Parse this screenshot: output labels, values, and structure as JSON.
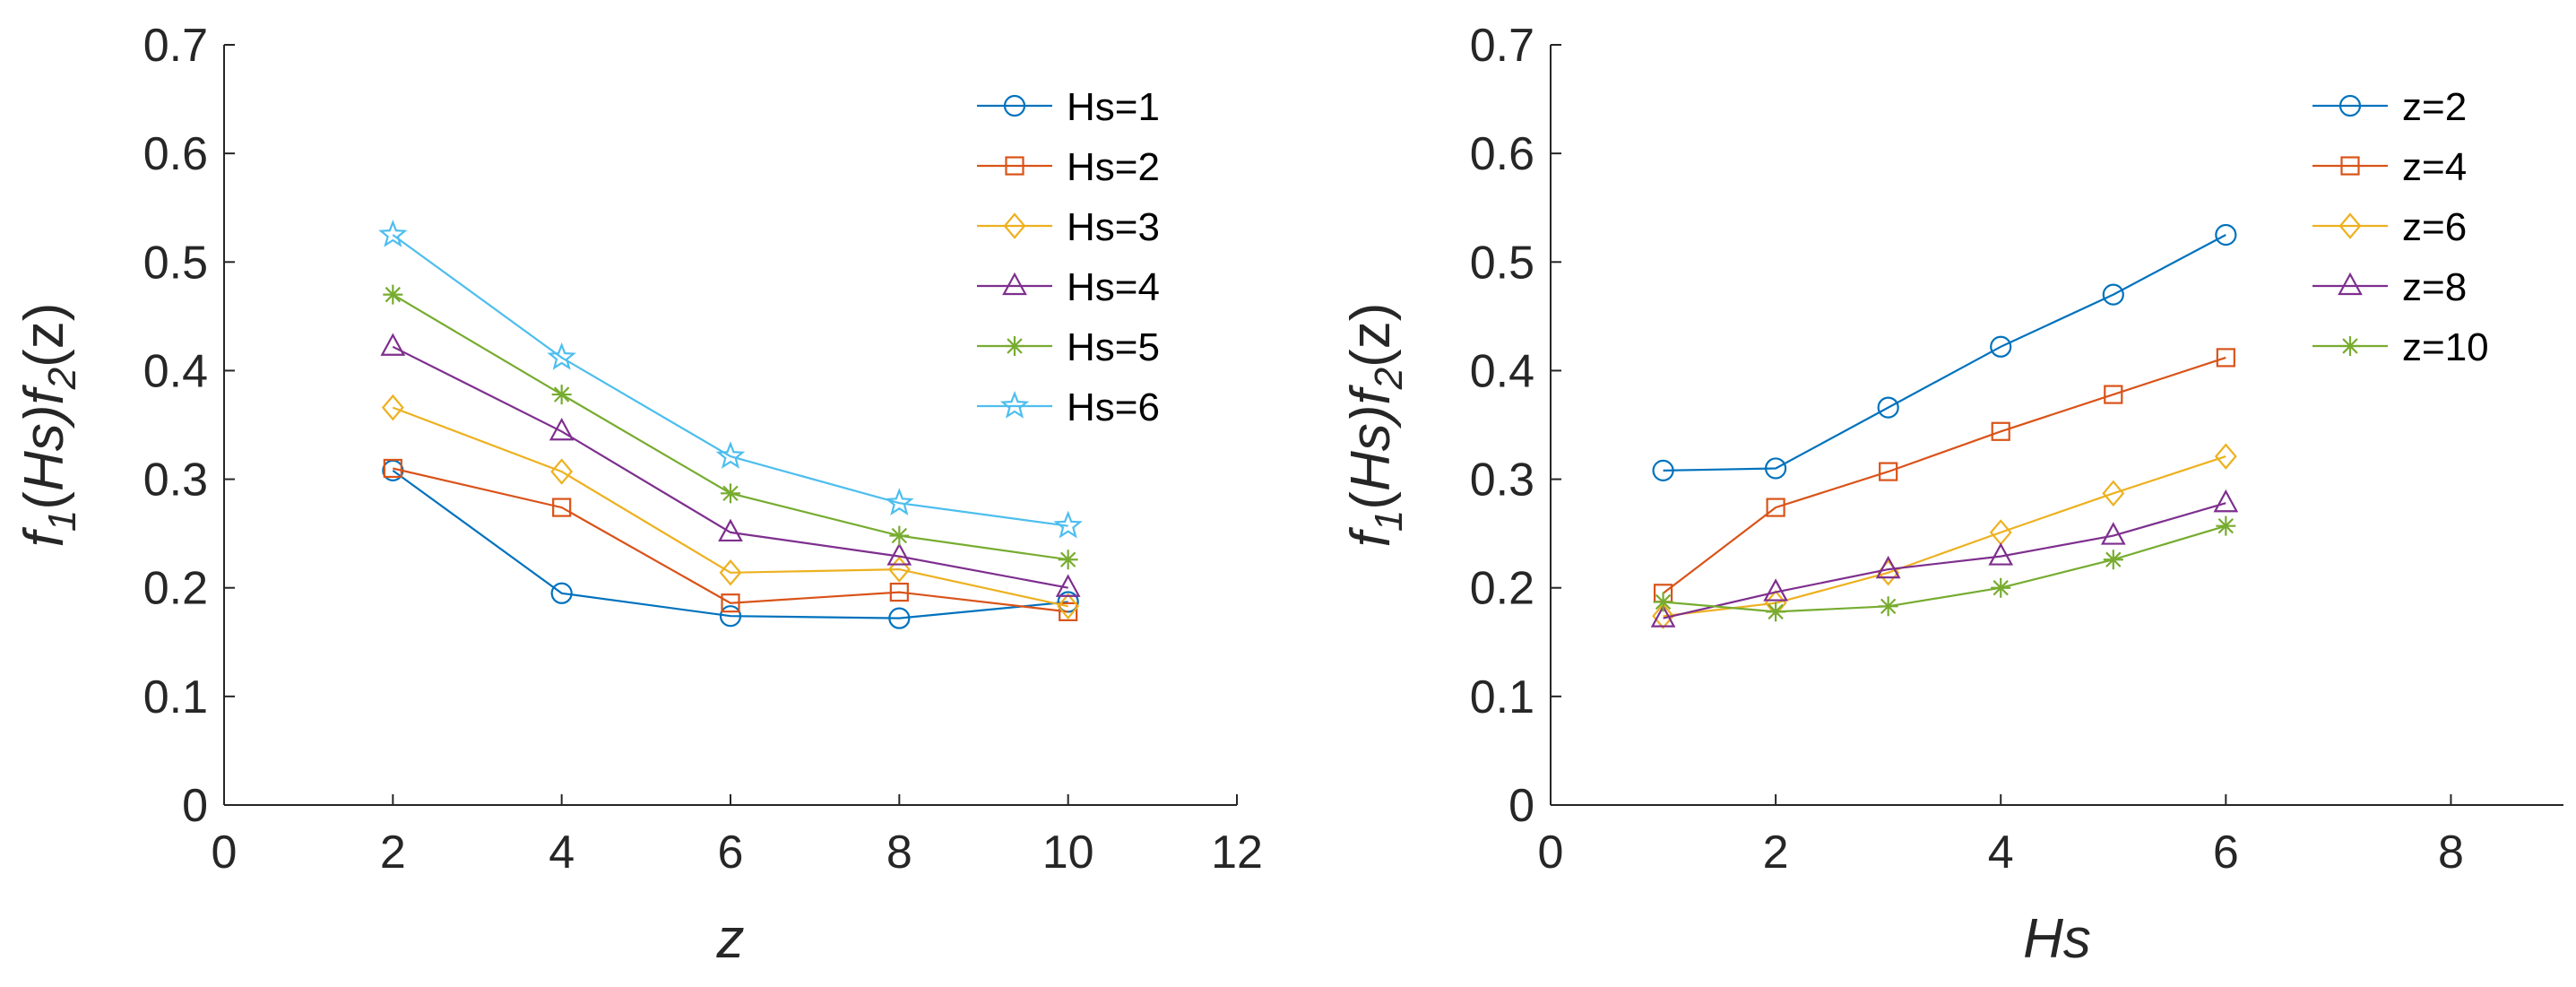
{
  "colors": {
    "series": [
      "#0072BD",
      "#D95319",
      "#EDB120",
      "#7E2F8E",
      "#77AC30",
      "#4DBEEE"
    ],
    "axis": "#262626",
    "background": "#FFFFFF"
  },
  "chart_data": [
    {
      "type": "line",
      "title": "",
      "xlabel": "z",
      "ylabel": {
        "pre": "f",
        "sub1": "1",
        "mid": "(",
        "var1": "Hs",
        "mid2": ")f",
        "sub2": "2",
        "var2": "(z)"
      },
      "x": [
        2,
        4,
        6,
        8,
        10
      ],
      "xlim": [
        0,
        12
      ],
      "ylim": [
        0,
        0.7
      ],
      "xticks": [
        "0",
        "2",
        "4",
        "6",
        "8",
        "10",
        "12"
      ],
      "yticks": [
        "0",
        "0.1",
        "0.2",
        "0.3",
        "0.4",
        "0.5",
        "0.6",
        "0.7"
      ],
      "grid": false,
      "legend_location": "top-right",
      "series": [
        {
          "name": "Hs=1",
          "marker": "circle",
          "values": [
            0.308,
            0.195,
            0.174,
            0.172,
            0.187
          ]
        },
        {
          "name": "Hs=2",
          "marker": "square",
          "values": [
            0.31,
            0.274,
            0.186,
            0.196,
            0.178
          ]
        },
        {
          "name": "Hs=3",
          "marker": "diamond",
          "values": [
            0.366,
            0.307,
            0.214,
            0.217,
            0.183
          ]
        },
        {
          "name": "Hs=4",
          "marker": "triangle",
          "values": [
            0.422,
            0.344,
            0.251,
            0.229,
            0.2
          ]
        },
        {
          "name": "Hs=5",
          "marker": "asterisk",
          "values": [
            0.47,
            0.378,
            0.287,
            0.248,
            0.226
          ]
        },
        {
          "name": "Hs=6",
          "marker": "star",
          "values": [
            0.525,
            0.412,
            0.321,
            0.278,
            0.257
          ]
        }
      ]
    },
    {
      "type": "line",
      "title": "",
      "xlabel": "Hs",
      "ylabel": {
        "pre": "f",
        "sub1": "1",
        "mid": "(",
        "var1": "Hs",
        "mid2": ")f",
        "sub2": "2",
        "var2": "(z)"
      },
      "x": [
        1,
        2,
        3,
        4,
        5,
        6
      ],
      "xlim": [
        0,
        9
      ],
      "ylim": [
        0,
        0.7
      ],
      "xticks": [
        "0",
        "2",
        "4",
        "6",
        "8"
      ],
      "xtick_values": [
        0,
        2,
        4,
        6,
        8
      ],
      "yticks": [
        "0",
        "0.1",
        "0.2",
        "0.3",
        "0.4",
        "0.5",
        "0.6",
        "0.7"
      ],
      "grid": false,
      "legend_location": "top-right",
      "series": [
        {
          "name": "z=2",
          "marker": "circle",
          "values": [
            0.308,
            0.31,
            0.366,
            0.422,
            0.47,
            0.525
          ]
        },
        {
          "name": "z=4",
          "marker": "square",
          "values": [
            0.195,
            0.274,
            0.307,
            0.344,
            0.378,
            0.412
          ]
        },
        {
          "name": "z=6",
          "marker": "diamond",
          "values": [
            0.174,
            0.186,
            0.214,
            0.251,
            0.287,
            0.321
          ]
        },
        {
          "name": "z=8",
          "marker": "triangle",
          "values": [
            0.172,
            0.196,
            0.217,
            0.229,
            0.248,
            0.278
          ]
        },
        {
          "name": "z=10",
          "marker": "asterisk",
          "values": [
            0.187,
            0.178,
            0.183,
            0.2,
            0.226,
            0.257
          ]
        }
      ]
    }
  ]
}
